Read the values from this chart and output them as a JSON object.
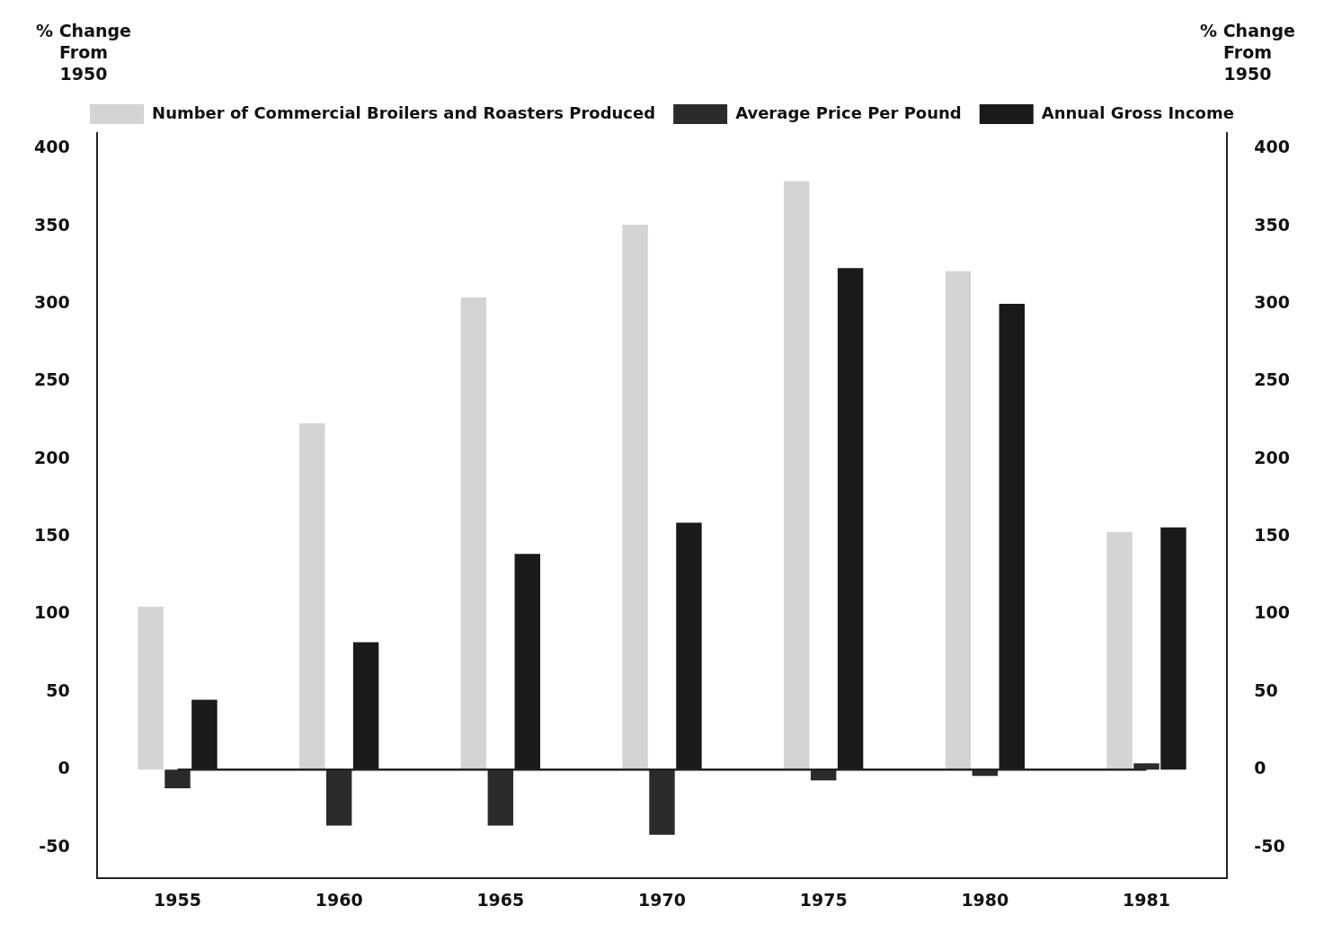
{
  "chart_data": {
    "type": "bar",
    "ylabel": "% Change From 1950",
    "y2label": "% Change From 1950",
    "categories": [
      "1955",
      "1960",
      "1965",
      "1970",
      "1975",
      "1980",
      "1981"
    ],
    "series": [
      {
        "name": "Number of Commercial Broilers and Roasters Produced",
        "color": "#d4d4d4",
        "values": [
          105,
          223,
          304,
          351,
          379,
          321,
          153
        ]
      },
      {
        "name": "Average Price Per Pound",
        "color": "#2b2b2b",
        "values": [
          -12,
          -36,
          -36,
          -42,
          -7,
          -4,
          4
        ]
      },
      {
        "name": "Annual Gross Income",
        "color": "#1a1a1a",
        "values": [
          45,
          82,
          139,
          159,
          323,
          300,
          156
        ]
      }
    ],
    "ylim": [
      -70,
      410
    ],
    "yticks": [
      -50,
      0,
      50,
      100,
      150,
      200,
      250,
      300,
      350,
      400
    ],
    "y2lim": [
      -70,
      410
    ],
    "y2ticks": [
      -50,
      0,
      50,
      100,
      150,
      200,
      250,
      300,
      350,
      400
    ],
    "ref_lines": [
      {
        "axis": "y",
        "value": 0,
        "color": "#222222"
      }
    ],
    "grid": false,
    "legend": "top"
  }
}
